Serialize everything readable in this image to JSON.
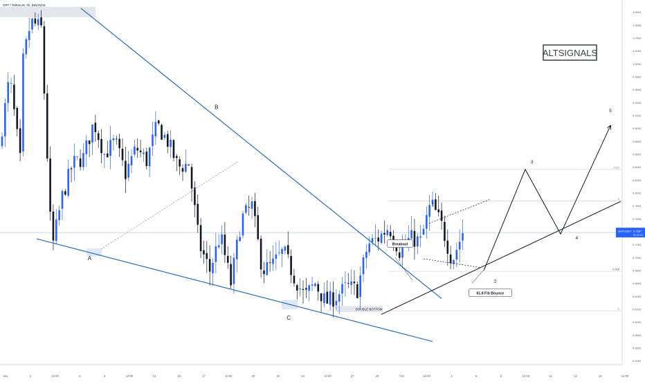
{
  "header": {
    "symbol_text": "GRT / TetherUS, 4h, BINANCE"
  },
  "watermark": {
    "text": "ALTSIGNALS"
  },
  "colors": {
    "up": "#2962ff",
    "down": "#131722",
    "trendline": "#2b6cb8",
    "fib_line": "#d6dae3",
    "axis_text": "#5d606b",
    "price_tag_bg": "#2962ff",
    "highlight_box": "#e3e6ec",
    "zone_blue": "#cfe0f7"
  },
  "chart_data": {
    "type": "candlestick",
    "title": "GRT / TetherUS, 4h, BINANCE",
    "ylim": [
      0.5385,
      1.0945
    ],
    "x_ticks": [
      "Sep",
      "3",
      "12:00",
      "6",
      "8",
      "12:00",
      "13",
      "15",
      "17",
      "12:00",
      "20",
      "22",
      "24",
      "12:00",
      "27",
      "29",
      "Oct",
      "12:00",
      "4",
      "6",
      "8",
      "12:00",
      "11",
      "13",
      "15",
      "12:00"
    ],
    "y_ticks": [
      "1.0800",
      "1.0600",
      "1.0400",
      "1.0200",
      "1.0000",
      "0.9800",
      "0.9600",
      "0.9400",
      "0.9200",
      "0.9000",
      "0.8800",
      "0.8600",
      "0.8400",
      "0.8200",
      "0.8000",
      "0.7800",
      "0.7600",
      "0.7400",
      "0.7200",
      "0.7000",
      "0.6800",
      "0.6600",
      "0.6400",
      "0.6200",
      "0.6000",
      "0.5800",
      "0.5600",
      "0.5400"
    ],
    "current_price": {
      "label": "GRTUSDT",
      "value": "0.7387",
      "price": 0.7387,
      "sub": "01:33:03"
    },
    "fib_levels": [
      {
        "label": "0.27",
        "price": 0.8365
      },
      {
        "label": "0",
        "price": 0.7875
      },
      {
        "label": "0.618",
        "price": 0.6787
      },
      {
        "label": "1",
        "price": 0.6176
      }
    ],
    "anchors": [
      [
        0.87,
        0.98,
        0.85
      ],
      [
        0.98,
        1.065,
        1.055
      ],
      [
        1.055,
        0.7105,
        0.795
      ],
      [
        0.795,
        0.845,
        0.855
      ],
      [
        0.855,
        0.91,
        0.86
      ],
      [
        0.86,
        0.88,
        0.83
      ],
      [
        0.83,
        0.87,
        0.85
      ],
      [
        0.85,
        0.905,
        0.88
      ],
      [
        0.88,
        0.84,
        0.845
      ],
      [
        0.845,
        0.72,
        0.68
      ],
      [
        0.68,
        0.735,
        0.66
      ],
      [
        0.66,
        0.76,
        0.78
      ],
      [
        0.78,
        0.68,
        0.69
      ],
      [
        0.69,
        0.71,
        0.67
      ],
      [
        0.67,
        0.64,
        0.66
      ],
      [
        0.66,
        0.63,
        0.64
      ],
      [
        0.64,
        0.655,
        0.65
      ],
      [
        0.65,
        0.72,
        0.73
      ],
      [
        0.73,
        0.748,
        0.71
      ],
      [
        0.71,
        0.73,
        0.725
      ],
      [
        0.725,
        0.785,
        0.75
      ],
      [
        0.75,
        0.695,
        0.7387
      ]
    ],
    "annotations": [
      {
        "text": "A",
        "x_frac": 0.144,
        "price": 0.696,
        "kind": "wave"
      },
      {
        "text": "B",
        "x_frac": 0.348,
        "price": 0.93,
        "kind": "wave"
      },
      {
        "text": "C",
        "x_frac": 0.464,
        "price": 0.604,
        "kind": "wave"
      },
      {
        "text": "1",
        "x_frac": 0.696,
        "price": 0.78,
        "kind": "wave-small"
      },
      {
        "text": "2",
        "x_frac": 0.796,
        "price": 0.661,
        "kind": "wave-small"
      },
      {
        "text": "3",
        "x_frac": 0.855,
        "price": 0.846,
        "kind": "wave-small"
      },
      {
        "text": "4",
        "x_frac": 0.927,
        "price": 0.728,
        "kind": "wave-small"
      },
      {
        "text": "5",
        "x_frac": 0.981,
        "price": 0.925,
        "kind": "wave-small"
      },
      {
        "text": "Breakout",
        "x_frac": 0.643,
        "price": 0.721,
        "kind": "callout"
      },
      {
        "text": "61.8 Fib Bounce",
        "x_frac": 0.788,
        "price": 0.645,
        "kind": "callout"
      },
      {
        "text": "DOUBLE BOTTOM",
        "x_frac": 0.593,
        "price": 0.62,
        "kind": "tag"
      }
    ]
  }
}
